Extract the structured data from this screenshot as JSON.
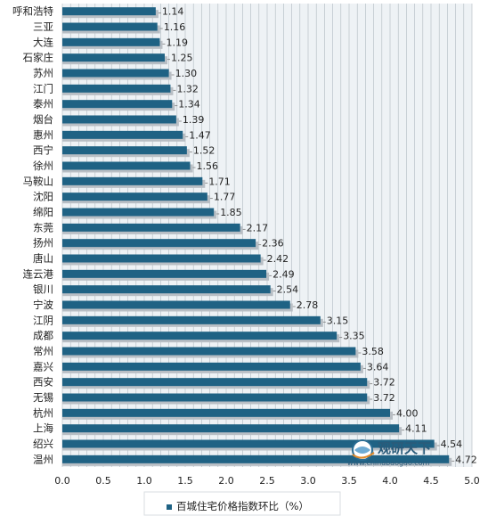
{
  "chart_data": {
    "type": "bar",
    "orientation": "horizontal",
    "categories": [
      "呼和浩特",
      "三亚",
      "大连",
      "石家庄",
      "苏州",
      "江门",
      "泰州",
      "烟台",
      "惠州",
      "西宁",
      "徐州",
      "马鞍山",
      "沈阳",
      "绵阳",
      "东莞",
      "扬州",
      "唐山",
      "连云港",
      "银川",
      "宁波",
      "江阴",
      "成都",
      "常州",
      "嘉兴",
      "西安",
      "无锡",
      "杭州",
      "上海",
      "绍兴",
      "温州"
    ],
    "series": [
      {
        "name": "百城住宅价格指数环比（%）",
        "values": [
          1.14,
          1.16,
          1.19,
          1.25,
          1.3,
          1.32,
          1.34,
          1.39,
          1.47,
          1.52,
          1.56,
          1.71,
          1.77,
          1.85,
          2.17,
          2.36,
          2.42,
          2.49,
          2.54,
          2.78,
          3.15,
          3.35,
          3.58,
          3.64,
          3.72,
          3.72,
          4.0,
          4.11,
          4.54,
          4.72
        ],
        "labels": [
          "1.14",
          "1.16",
          "1.19",
          "1.25",
          "1.30",
          "1.32",
          "1.34",
          "1.39",
          "1.47",
          "1.52",
          "1.56",
          "1.71",
          "1.77",
          "1.85",
          "2.17",
          "2.36",
          "2.42",
          "2.49",
          "2.54",
          "2.78",
          "3.15",
          "3.35",
          "3.58",
          "3.64",
          "3.72",
          "3.72",
          "4.00",
          "4.11",
          "4.54",
          "4.72"
        ],
        "color": "#1f6284"
      }
    ],
    "xlim": [
      0,
      5
    ],
    "xticks": [
      "0.0",
      "0.5",
      "1.0",
      "1.5",
      "2.0",
      "2.5",
      "3.0",
      "3.5",
      "4.0",
      "4.5",
      "5.0"
    ],
    "grid": true,
    "legend": "bottom",
    "colors": {
      "bar": "#1f6284",
      "shadow": "#b8bec4",
      "grid": "#b0b9c0",
      "plot_bg": "#eef2f5"
    }
  },
  "watermark": {
    "text": "观研天下",
    "url": "www.chinabaogao.com",
    "icon": "globe-logo-icon"
  }
}
